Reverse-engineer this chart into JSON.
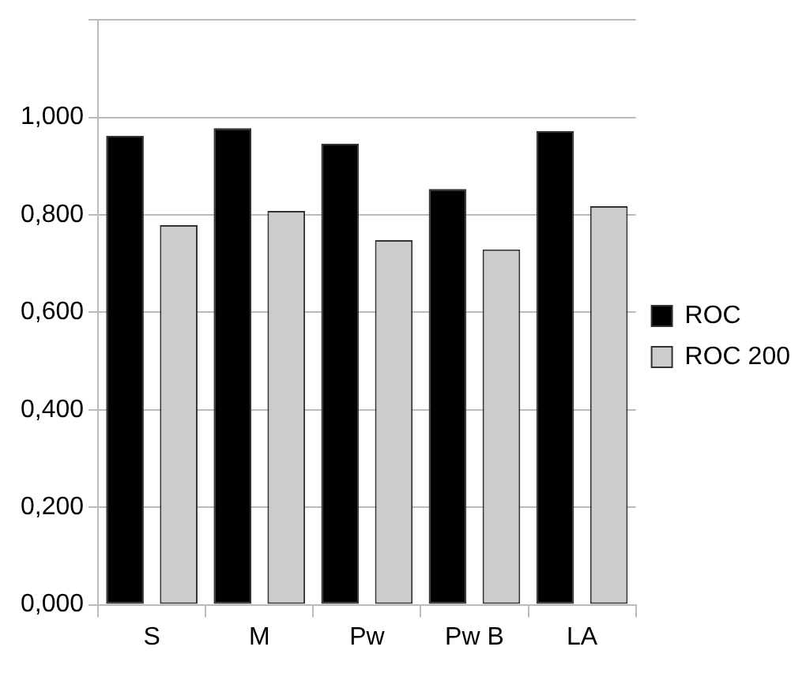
{
  "chart_data": {
    "type": "bar",
    "categories": [
      "S",
      "M",
      "Pw",
      "Pw B",
      "LA"
    ],
    "series": [
      {
        "name": "ROC",
        "color": "#000000",
        "values": [
          0.962,
          0.978,
          0.946,
          0.853,
          0.972
        ]
      },
      {
        "name": "ROC 200",
        "color": "#cccccc",
        "values": [
          0.779,
          0.808,
          0.748,
          0.729,
          0.818
        ]
      }
    ],
    "ylim": [
      0,
      1.2
    ],
    "yticks": [
      {
        "value": 0,
        "label": "0,000"
      },
      {
        "value": 0.2,
        "label": "0,200"
      },
      {
        "value": 0.4,
        "label": "0,400"
      },
      {
        "value": 0.6,
        "label": "0,600"
      },
      {
        "value": 0.8,
        "label": "0,800"
      },
      {
        "value": 1,
        "label": "1,000"
      },
      {
        "value": 1.2,
        "label": null
      }
    ],
    "grid": "y",
    "legend": "right"
  }
}
